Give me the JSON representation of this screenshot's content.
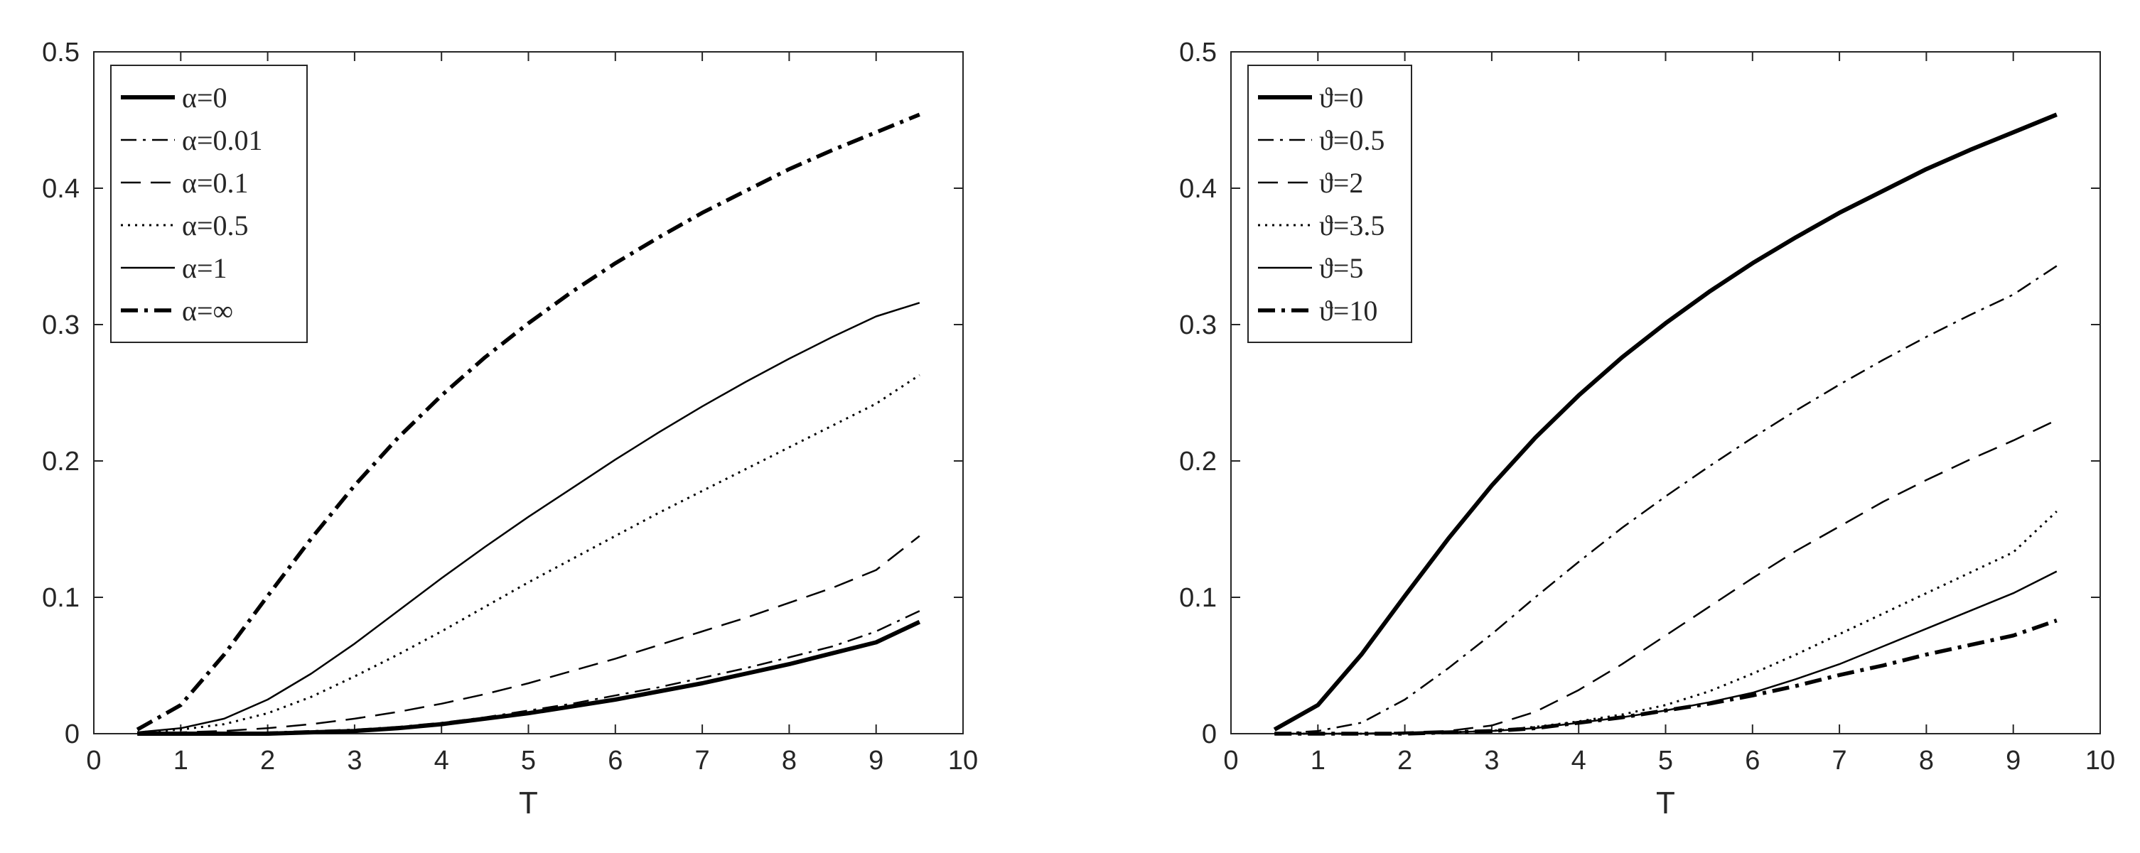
{
  "chart_data": [
    {
      "type": "line",
      "title": "",
      "xlabel": "T",
      "ylabel": "",
      "xlim": [
        0,
        10
      ],
      "ylim": [
        0,
        0.5
      ],
      "xticks": [
        "0",
        "1",
        "2",
        "3",
        "4",
        "5",
        "6",
        "7",
        "8",
        "9",
        "10"
      ],
      "yticks": [
        "0",
        "0.1",
        "0.2",
        "0.3",
        "0.4",
        "0.5"
      ],
      "grid": false,
      "legend_position": "top-left",
      "x": [
        0.5,
        1,
        1.5,
        2,
        2.5,
        3,
        3.5,
        4,
        4.5,
        5,
        5.5,
        6,
        6.5,
        7,
        7.5,
        8,
        8.5,
        9,
        9.5
      ],
      "series": [
        {
          "name": "α=0",
          "style": "thick-solid",
          "values": [
            0,
            0,
            0,
            0,
            0.001,
            0.002,
            0.004,
            0.007,
            0.011,
            0.015,
            0.02,
            0.025,
            0.031,
            0.037,
            0.044,
            0.051,
            0.059,
            0.067,
            0.082
          ]
        },
        {
          "name": "α=0.01",
          "style": "dash-dot",
          "values": [
            0,
            0,
            0,
            0.001,
            0.002,
            0.003,
            0.005,
            0.008,
            0.012,
            0.017,
            0.022,
            0.028,
            0.034,
            0.041,
            0.048,
            0.056,
            0.064,
            0.075,
            0.09
          ]
        },
        {
          "name": "α=0.1",
          "style": "dashed",
          "values": [
            0,
            0.001,
            0.002,
            0.004,
            0.007,
            0.011,
            0.016,
            0.022,
            0.029,
            0.037,
            0.046,
            0.055,
            0.065,
            0.075,
            0.085,
            0.096,
            0.107,
            0.12,
            0.145
          ]
        },
        {
          "name": "α=0.5",
          "style": "dotted",
          "values": [
            0.001,
            0.003,
            0.007,
            0.015,
            0.027,
            0.042,
            0.058,
            0.075,
            0.093,
            0.111,
            0.128,
            0.145,
            0.162,
            0.178,
            0.194,
            0.21,
            0.226,
            0.242,
            0.263
          ]
        },
        {
          "name": "α=1",
          "style": "thin-solid",
          "values": [
            0.001,
            0.004,
            0.011,
            0.025,
            0.044,
            0.066,
            0.09,
            0.114,
            0.137,
            0.159,
            0.18,
            0.201,
            0.221,
            0.24,
            0.258,
            0.275,
            0.291,
            0.306,
            0.316
          ]
        },
        {
          "name": "α=∞",
          "style": "thick-dash-dot",
          "values": [
            0.003,
            0.021,
            0.058,
            0.101,
            0.143,
            0.182,
            0.217,
            0.248,
            0.276,
            0.301,
            0.324,
            0.345,
            0.364,
            0.382,
            0.398,
            0.414,
            0.428,
            0.441,
            0.454
          ]
        }
      ]
    },
    {
      "type": "line",
      "title": "",
      "xlabel": "T",
      "ylabel": "",
      "xlim": [
        0,
        10
      ],
      "ylim": [
        0,
        0.5
      ],
      "xticks": [
        "0",
        "1",
        "2",
        "3",
        "4",
        "5",
        "6",
        "7",
        "8",
        "9",
        "10"
      ],
      "yticks": [
        "0",
        "0.1",
        "0.2",
        "0.3",
        "0.4",
        "0.5"
      ],
      "grid": false,
      "legend_position": "top-left",
      "x": [
        0.5,
        1,
        1.5,
        2,
        2.5,
        3,
        3.5,
        4,
        4.5,
        5,
        5.5,
        6,
        6.5,
        7,
        7.5,
        8,
        8.5,
        9,
        9.5
      ],
      "series": [
        {
          "name": "ϑ=0",
          "style": "thick-solid",
          "values": [
            0.003,
            0.021,
            0.058,
            0.101,
            0.143,
            0.182,
            0.217,
            0.248,
            0.276,
            0.301,
            0.324,
            0.345,
            0.364,
            0.382,
            0.398,
            0.414,
            0.428,
            0.441,
            0.454
          ]
        },
        {
          "name": "ϑ=0.5",
          "style": "dash-dot",
          "values": [
            0,
            0.002,
            0.008,
            0.025,
            0.048,
            0.073,
            0.1,
            0.126,
            0.151,
            0.174,
            0.196,
            0.217,
            0.237,
            0.256,
            0.274,
            0.291,
            0.307,
            0.322,
            0.343
          ]
        },
        {
          "name": "ϑ=2",
          "style": "dashed",
          "values": [
            0,
            0,
            0,
            0.001,
            0.002,
            0.006,
            0.016,
            0.032,
            0.051,
            0.072,
            0.093,
            0.114,
            0.134,
            0.152,
            0.17,
            0.186,
            0.201,
            0.215,
            0.23
          ]
        },
        {
          "name": "ϑ=3.5",
          "style": "dotted",
          "values": [
            0,
            0,
            0,
            0,
            0.001,
            0.002,
            0.005,
            0.009,
            0.014,
            0.021,
            0.031,
            0.044,
            0.058,
            0.073,
            0.088,
            0.103,
            0.118,
            0.133,
            0.163
          ]
        },
        {
          "name": "ϑ=5",
          "style": "thin-solid",
          "values": [
            0,
            0,
            0,
            0,
            0.001,
            0.002,
            0.004,
            0.008,
            0.012,
            0.017,
            0.023,
            0.03,
            0.04,
            0.051,
            0.064,
            0.077,
            0.09,
            0.103,
            0.119
          ]
        },
        {
          "name": "ϑ=10",
          "style": "thick-dash-dot",
          "values": [
            0,
            0,
            0,
            0,
            0.001,
            0.002,
            0.004,
            0.008,
            0.012,
            0.017,
            0.022,
            0.028,
            0.035,
            0.043,
            0.05,
            0.058,
            0.065,
            0.072,
            0.083
          ]
        }
      ]
    }
  ]
}
